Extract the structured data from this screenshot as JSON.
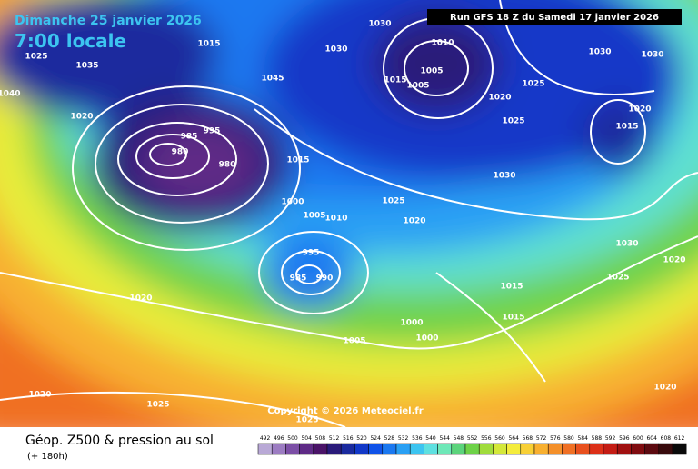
{
  "header": {
    "date": "Dimanche 25 janvier 2026",
    "time": "7:00 locale",
    "run": "Run GFS 18 Z du Samedi 17 janvier 2026"
  },
  "copyright": "Copyright © 2026 Meteociel.fr",
  "footer": {
    "title": "Géop. Z500 & pression au sol",
    "lead": "(+ 180h)"
  },
  "isobar_labels": [
    "1025",
    "1035",
    "1015",
    "1030",
    "1010",
    "1005",
    "1005",
    "1015",
    "1030",
    "1030",
    "1030",
    "1025",
    "1020",
    "1025",
    "1020",
    "1015",
    "1030",
    "1020",
    "1040",
    "1045",
    "985",
    "980",
    "995",
    "980",
    "1015",
    "1000",
    "1005",
    "1010",
    "1025",
    "1020",
    "995",
    "985",
    "990",
    "1005",
    "1000",
    "1000",
    "1015",
    "1015",
    "1025",
    "1030",
    "1020",
    "1020",
    "1020",
    "1025",
    "1025",
    "1020"
  ],
  "scale": {
    "values": [
      492,
      496,
      500,
      504,
      508,
      512,
      516,
      520,
      524,
      528,
      532,
      536,
      540,
      544,
      548,
      552,
      556,
      560,
      564,
      568,
      572,
      576,
      580,
      584,
      588,
      592,
      596,
      600,
      604,
      608,
      612
    ],
    "colors": [
      "#b9a9d6",
      "#9c7cc2",
      "#7c4fa6",
      "#5e2a86",
      "#4a1368",
      "#2a1a7a",
      "#1a2a9e",
      "#1238c8",
      "#0f52e8",
      "#1a78f0",
      "#29a0f4",
      "#3cc4f0",
      "#5ee0e0",
      "#6ee8b8",
      "#5cd47c",
      "#6ed248",
      "#a0dc3c",
      "#d4e83a",
      "#f4ec3c",
      "#f8d036",
      "#f8b030",
      "#f4902a",
      "#f07024",
      "#e8501e",
      "#dc3018",
      "#c41c14",
      "#a01010",
      "#800c10",
      "#5c0a10",
      "#380a0c",
      "#0a0a0a"
    ]
  }
}
